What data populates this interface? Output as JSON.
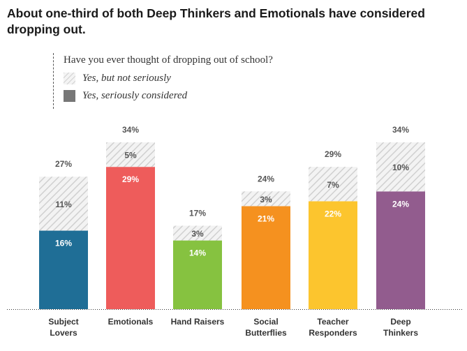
{
  "title": "About one-third of both Deep Thinkers and Emotionals have considered dropping out.",
  "legend": {
    "question": "Have you ever thought of dropping out of school?",
    "items": [
      {
        "label": "Yes, but not seriously",
        "key": "not_seriously"
      },
      {
        "label": "Yes, seriously considered",
        "key": "seriously"
      }
    ]
  },
  "chart_data": {
    "type": "bar",
    "stacked": true,
    "title": "About one-third of both Deep Thinkers and Emotionals have considered dropping out.",
    "categories": [
      "Subject Lovers",
      "Emotionals",
      "Hand Raisers",
      "Social Butterflies",
      "Teacher Responders",
      "Deep Thinkers"
    ],
    "category_label_lines": [
      [
        "Subject",
        "Lovers"
      ],
      [
        "Emotionals"
      ],
      [
        "Hand Raisers"
      ],
      [
        "Social",
        "Butterflies"
      ],
      [
        "Teacher",
        "Responders"
      ],
      [
        "Deep",
        "Thinkers"
      ]
    ],
    "series": [
      {
        "name": "Yes, seriously considered",
        "values": [
          16,
          29,
          14,
          21,
          22,
          24
        ],
        "labels": [
          "16%",
          "29%",
          "14%",
          "21%",
          "22%",
          "24%"
        ]
      },
      {
        "name": "Yes, but not seriously",
        "values": [
          11,
          5,
          3,
          3,
          7,
          10
        ],
        "labels": [
          "11%",
          "5%",
          "3%",
          "3%",
          "7%",
          "10%"
        ]
      }
    ],
    "totals": [
      27,
      34,
      17,
      24,
      29,
      34
    ],
    "total_labels": [
      "27%",
      "34%",
      "17%",
      "24%",
      "29%",
      "34%"
    ],
    "colors": [
      "#1f6e96",
      "#ee5c5b",
      "#86c240",
      "#f5911f",
      "#fcc52e",
      "#925c8e"
    ],
    "hatch_color": "#d0d0d0",
    "xlabel": "",
    "ylabel": "",
    "ylim": [
      0,
      34
    ],
    "grid": false
  }
}
